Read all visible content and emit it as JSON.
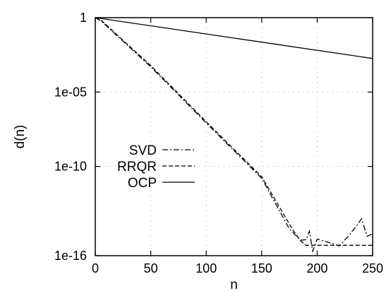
{
  "chart_data": {
    "type": "line",
    "xlabel": "n",
    "ylabel": "d(n)",
    "xlim": [
      0,
      250
    ],
    "ylim": [
      1e-16,
      1
    ],
    "yscale": "log",
    "grid": true,
    "legend_position": "left",
    "x_ticks": [
      {
        "value": 0,
        "label": "0"
      },
      {
        "value": 50,
        "label": "50"
      },
      {
        "value": 100,
        "label": "100"
      },
      {
        "value": 150,
        "label": "150"
      },
      {
        "value": 200,
        "label": "200"
      },
      {
        "value": 250,
        "label": "250"
      }
    ],
    "y_ticks": [
      {
        "value": 1,
        "label": "1"
      },
      {
        "value": 1e-05,
        "label": "1e-05"
      },
      {
        "value": 1e-10,
        "label": "1e-10"
      },
      {
        "value": 1e-16,
        "label": "1e-16"
      }
    ],
    "series": [
      {
        "name": "SVD",
        "dash": "dash-dot",
        "x": [
          0,
          5,
          50,
          100,
          150,
          175,
          185,
          190,
          193,
          196,
          200,
          210,
          220,
          230,
          240,
          245,
          250
        ],
        "y": [
          1,
          0.62,
          0.0005,
          8.3e-08,
          1.6e-11,
          6.2e-15,
          1.1e-15,
          1.2e-15,
          4.5e-15,
          2e-16,
          1.3e-15,
          8e-16,
          4.5e-16,
          3e-15,
          3e-14,
          2e-15,
          3e-15
        ]
      },
      {
        "name": "RRQR",
        "dash": "dashed",
        "x": [
          0,
          5,
          50,
          100,
          150,
          178,
          185,
          190,
          200,
          250
        ],
        "y": [
          1,
          0.7,
          0.0006,
          1e-07,
          2e-11,
          5.5e-15,
          1e-15,
          5e-16,
          5e-16,
          5e-16
        ]
      },
      {
        "name": "OCP",
        "dash": "solid",
        "x": [
          0,
          250
        ],
        "y": [
          1,
          0.0018
        ]
      }
    ]
  }
}
